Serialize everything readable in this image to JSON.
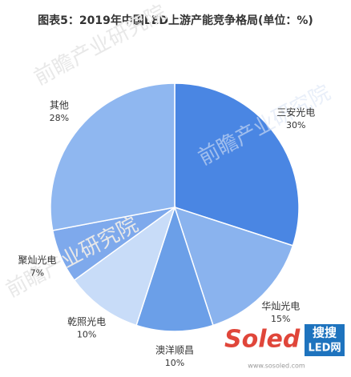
{
  "chart_data": {
    "type": "pie",
    "title": "图表5：2019年中国LED上游产能竞争格局(单位：%)",
    "categories": [
      "三安光电",
      "华灿光电",
      "澳洋顺昌",
      "乾照光电",
      "聚灿光电",
      "其他"
    ],
    "values": [
      30,
      15,
      10,
      10,
      7,
      28
    ],
    "value_labels": [
      "30%",
      "15%",
      "10%",
      "10%",
      "7%",
      "28%"
    ],
    "colors": [
      "#4a86e3",
      "#8ab3ee",
      "#6b9fe8",
      "#c8dcf8",
      "#7ea9ec",
      "#8fb7f0"
    ]
  },
  "watermark": {
    "brand": "前瞻产业研究院",
    "logo_a": "Soled",
    "logo_b": "搜搜",
    "logo_c": "LED网",
    "url": "www.sosoled.com"
  }
}
